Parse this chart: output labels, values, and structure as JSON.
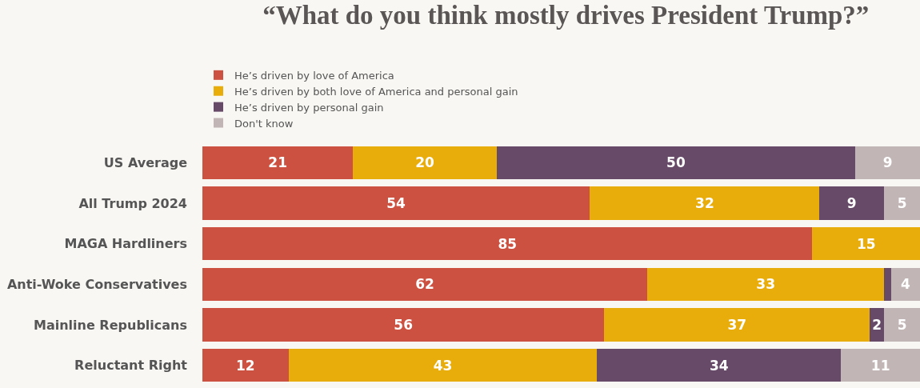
{
  "chart_data": {
    "type": "bar",
    "orientation": "horizontal",
    "stacked": true,
    "title": "“What do you think mostly drives President Trump?”",
    "categories": [
      "US Average",
      "All Trump 2024",
      "MAGA Hardliners",
      "Anti-Woke Conservatives",
      "Mainline Republicans",
      "Reluctant Right"
    ],
    "series": [
      {
        "name": "He’s driven by love of America",
        "color": "#cc5140",
        "values": [
          21,
          54,
          85,
          62,
          56,
          12
        ],
        "value_labels": [
          "21",
          "54",
          "85",
          "62",
          "56",
          "12"
        ]
      },
      {
        "name": "He’s driven by both love of America and personal gain",
        "color": "#e8ad0b",
        "values": [
          20,
          32,
          15,
          33,
          37,
          43
        ],
        "value_labels": [
          "20",
          "32",
          "15",
          "33",
          "37",
          "43"
        ]
      },
      {
        "name": "He’s driven by personal gain",
        "color": "#674a68",
        "values": [
          50,
          9,
          0,
          1,
          2,
          34
        ],
        "value_labels": [
          "50",
          "9",
          null,
          null,
          "2",
          "34"
        ]
      },
      {
        "name": "Don't know",
        "color": "#c2b5b5",
        "values": [
          9,
          5,
          0,
          4,
          5,
          11
        ],
        "value_labels": [
          "9",
          "5",
          null,
          "4",
          "5",
          "11"
        ]
      }
    ],
    "xlim": [
      0,
      100
    ],
    "tick_labels": "y",
    "legend": "top left"
  }
}
